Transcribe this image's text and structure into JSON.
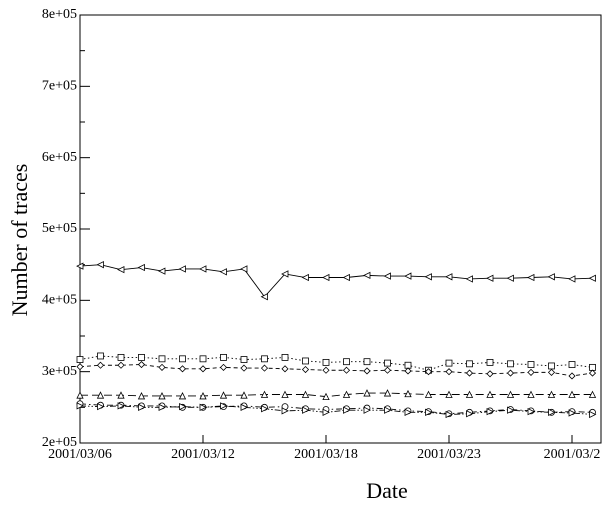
{
  "chart_data": {
    "type": "line",
    "x_label": "Date",
    "y_label": "Number of traces",
    "categories": [
      "2001/03/06",
      null,
      null,
      null,
      null,
      null,
      "2001/03/12",
      null,
      null,
      null,
      null,
      null,
      "2001/03/18",
      null,
      null,
      null,
      null,
      null,
      "2001/03/23",
      null,
      null,
      null,
      null,
      null,
      "2001/03/2",
      null
    ],
    "ylim": [
      200000,
      800000
    ],
    "yticks": [
      {
        "value": 200000,
        "label": "2e+05"
      },
      {
        "value": 300000,
        "label": "3e+05"
      },
      {
        "value": 400000,
        "label": "4e+05"
      },
      {
        "value": 500000,
        "label": "5e+05"
      },
      {
        "value": 600000,
        "label": "6e+05"
      },
      {
        "value": 700000,
        "label": "7e+05"
      },
      {
        "value": 800000,
        "label": "8e+05"
      }
    ],
    "yminorticks": [
      250000,
      350000,
      450000,
      550000,
      650000,
      750000
    ],
    "series": [
      {
        "color": "#000000",
        "marker": "triangle-left",
        "linestyle": "solid",
        "values": [
          448000,
          450000,
          443000,
          446000,
          441000,
          444000,
          444000,
          440000,
          444000,
          405000,
          437000,
          432000,
          432000,
          432000,
          435000,
          434000,
          434000,
          433000,
          433000,
          430000,
          431000,
          431000,
          432000,
          433000,
          430000,
          431000
        ]
      },
      {
        "color": "#000000",
        "marker": "square",
        "linestyle": "dotted",
        "values": [
          317000,
          322000,
          320000,
          320000,
          318000,
          318000,
          318000,
          320000,
          317000,
          318000,
          320000,
          315000,
          313000,
          314000,
          314000,
          312000,
          309000,
          302000,
          312000,
          311000,
          313000,
          311000,
          310000,
          308000,
          310000,
          306000
        ]
      },
      {
        "color": "#000000",
        "marker": "diamond",
        "linestyle": "dashed",
        "values": [
          307000,
          309000,
          309000,
          310000,
          306000,
          304000,
          304000,
          306000,
          305000,
          305000,
          304000,
          303000,
          302000,
          302000,
          301000,
          302000,
          301000,
          300000,
          300000,
          298000,
          297000,
          298000,
          299000,
          299000,
          294000,
          298000
        ]
      },
      {
        "color": "#000000",
        "marker": "triangle-up",
        "linestyle": "longdash",
        "values": [
          267000,
          267000,
          267000,
          266000,
          266000,
          266000,
          266000,
          267000,
          267000,
          268000,
          268000,
          268000,
          265000,
          268000,
          270000,
          270000,
          269000,
          268000,
          268000,
          268000,
          268000,
          268000,
          268000,
          268000,
          268000,
          268000
        ]
      },
      {
        "color": "#000000",
        "marker": "circle",
        "linestyle": "dashdot",
        "values": [
          255000,
          253000,
          253000,
          252000,
          252000,
          250000,
          250000,
          251000,
          252000,
          250000,
          251000,
          248000,
          247000,
          248000,
          249000,
          248000,
          245000,
          244000,
          241000,
          243000,
          245000,
          247000,
          245000,
          243000,
          244000,
          243000
        ]
      },
      {
        "color": "#000000",
        "marker": "triangle-right",
        "linestyle": "dashdotdot",
        "values": [
          252000,
          251000,
          252000,
          250000,
          250000,
          251000,
          250000,
          252000,
          250000,
          248000,
          245000,
          246000,
          243000,
          246000,
          246000,
          246000,
          243000,
          243000,
          240000,
          241000,
          244000,
          246000,
          244000,
          243000,
          242000,
          240000
        ]
      }
    ]
  }
}
